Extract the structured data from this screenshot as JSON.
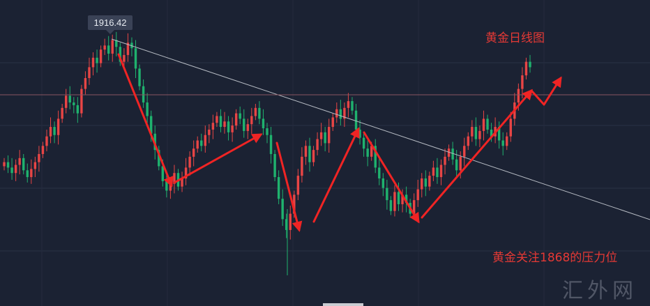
{
  "chart_data": {
    "type": "candlestick",
    "title": "黄金日线图",
    "annotation": "黄金关注1868的压力位",
    "peak_label": "1916.42",
    "watermark": "汇外网",
    "y_range": [
      1740,
      1925
    ],
    "levels": [
      1916.42,
      1868
    ],
    "colors": {
      "up": "#e84545",
      "down": "#1fb26e",
      "arrow": "#f02424",
      "trendline": "#b7bcc4",
      "level": "#8a5560"
    },
    "closes": [
      1826,
      1822,
      1818,
      1824,
      1829,
      1820,
      1815,
      1821,
      1826,
      1832,
      1838,
      1845,
      1852,
      1846,
      1858,
      1866,
      1875,
      1870,
      1868,
      1862,
      1880,
      1888,
      1896,
      1903,
      1899,
      1909,
      1912,
      1906,
      1916,
      1911,
      1900,
      1905,
      1914,
      1910,
      1895,
      1882,
      1870,
      1860,
      1847,
      1835,
      1823,
      1812,
      1805,
      1810,
      1818,
      1808,
      1814,
      1822,
      1830,
      1836,
      1842,
      1838,
      1846,
      1850,
      1855,
      1860,
      1852,
      1856,
      1848,
      1853,
      1862,
      1858,
      1849,
      1854,
      1860,
      1866,
      1858,
      1851,
      1846,
      1832,
      1815,
      1799,
      1784,
      1776,
      1788,
      1802,
      1816,
      1830,
      1838,
      1826,
      1835,
      1843,
      1848,
      1840,
      1852,
      1859,
      1865,
      1858,
      1866,
      1871,
      1864,
      1850,
      1844,
      1836,
      1830,
      1838,
      1822,
      1814,
      1807,
      1798,
      1790,
      1804,
      1795,
      1802,
      1796,
      1788,
      1798,
      1806,
      1814,
      1808,
      1816,
      1822,
      1815,
      1824,
      1830,
      1836,
      1828,
      1820,
      1830,
      1838,
      1845,
      1852,
      1843,
      1849,
      1858,
      1850,
      1845,
      1852,
      1842,
      1838,
      1845,
      1858,
      1870,
      1880,
      1890,
      1900,
      1896
    ]
  }
}
